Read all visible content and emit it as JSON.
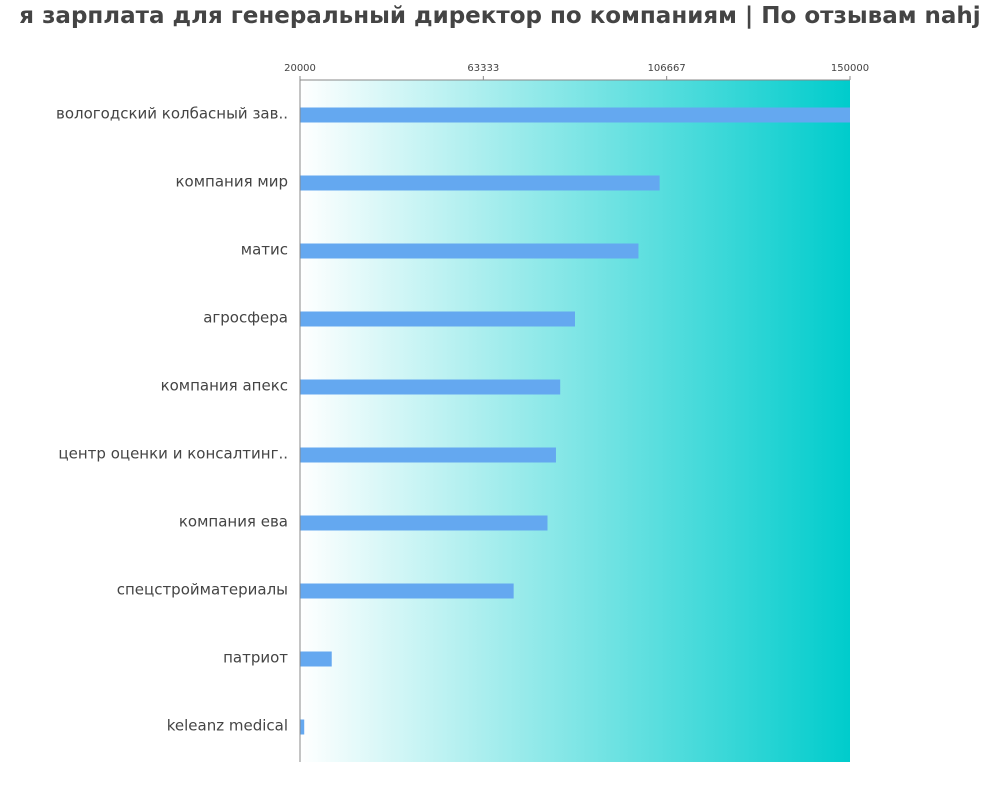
{
  "chart_data": {
    "type": "bar",
    "orientation": "horizontal",
    "title": "я зарплата для генеральный директор по компаниям  | По отзывам nahj",
    "categories": [
      "вологодский колбасный зав..",
      "компания мир",
      "матис",
      "агросфера",
      "компания апекс",
      "центр оценки и консалтинг..",
      "компания ева",
      "спецстройматериалы",
      "патриот",
      "keleanz medical"
    ],
    "values": [
      150000,
      105000,
      100000,
      85000,
      81500,
      80500,
      78500,
      70500,
      27500,
      21000
    ],
    "xlim": [
      20000,
      150000
    ],
    "x_ticks": [
      "20000",
      "63333",
      "106667",
      "150000"
    ],
    "x_tick_values": [
      20000,
      63333,
      106667,
      150000
    ],
    "bar_color": "#64a8f0",
    "gradient_colors": [
      "#ffffff",
      "#00cccc"
    ],
    "axis_color": "#888888",
    "xlabel": "",
    "ylabel": "",
    "grid": false
  }
}
